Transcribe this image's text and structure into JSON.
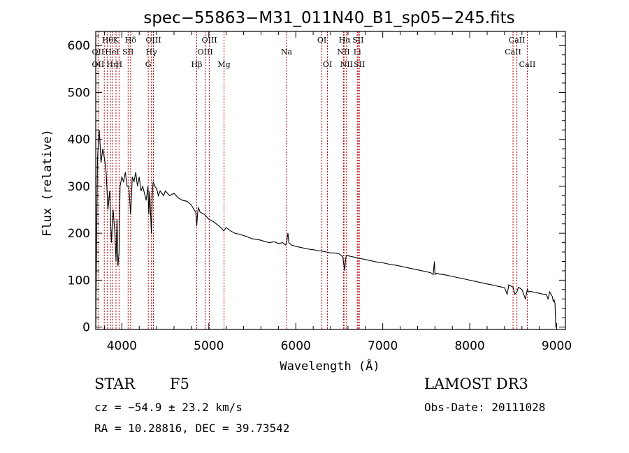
{
  "chart_data": {
    "type": "line",
    "title": "spec−55863−M31_011N40_B1_sp05−245.fits",
    "xlabel": "Wavelength (Å)",
    "ylabel": "Flux (relative)",
    "xlim": [
      3700,
      9100
    ],
    "ylim": [
      -5,
      630
    ],
    "xticks": [
      4000,
      5000,
      6000,
      7000,
      8000,
      9000
    ],
    "yticks": [
      0,
      100,
      200,
      300,
      400,
      500,
      600
    ],
    "grid": false,
    "series": [
      {
        "name": "Flux",
        "color": "#000000",
        "x": [
          3700,
          3720,
          3740,
          3750,
          3760,
          3780,
          3800,
          3820,
          3840,
          3860,
          3880,
          3900,
          3920,
          3933,
          3945,
          3955,
          3968,
          3980,
          4000,
          4020,
          4040,
          4060,
          4080,
          4101,
          4120,
          4140,
          4160,
          4180,
          4200,
          4220,
          4240,
          4260,
          4280,
          4300,
          4310,
          4320,
          4340,
          4350,
          4360,
          4380,
          4400,
          4420,
          4440,
          4460,
          4480,
          4500,
          4550,
          4600,
          4650,
          4700,
          4750,
          4800,
          4830,
          4850,
          4861,
          4870,
          4880,
          4900,
          4950,
          5000,
          5050,
          5100,
          5150,
          5170,
          5200,
          5250,
          5300,
          5350,
          5400,
          5450,
          5500,
          5550,
          5600,
          5650,
          5700,
          5750,
          5800,
          5850,
          5880,
          5895,
          5905,
          5910,
          5920,
          5950,
          6000,
          6050,
          6100,
          6150,
          6200,
          6250,
          6300,
          6350,
          6400,
          6450,
          6500,
          6540,
          6563,
          6570,
          6580,
          6600,
          6650,
          6700,
          6750,
          6800,
          6850,
          6900,
          6950,
          7000,
          7050,
          7100,
          7150,
          7200,
          7250,
          7300,
          7350,
          7400,
          7450,
          7500,
          7550,
          7580,
          7594,
          7600,
          7620,
          7650,
          7700,
          7750,
          7800,
          7850,
          7900,
          7950,
          8000,
          8050,
          8100,
          8150,
          8200,
          8250,
          8300,
          8350,
          8400,
          8430,
          8450,
          8498,
          8520,
          8542,
          8560,
          8600,
          8640,
          8662,
          8680,
          8700,
          8750,
          8800,
          8850,
          8880,
          8900,
          8920,
          8950,
          8960,
          8970,
          8980,
          8990,
          9000
        ],
        "values": [
          0,
          360,
          420,
          390,
          350,
          380,
          360,
          330,
          250,
          290,
          180,
          250,
          200,
          140,
          230,
          130,
          160,
          300,
          320,
          310,
          330,
          300,
          300,
          240,
          320,
          310,
          330,
          300,
          320,
          290,
          300,
          285,
          270,
          300,
          240,
          290,
          200,
          280,
          310,
          300,
          295,
          280,
          290,
          285,
          280,
          290,
          280,
          285,
          275,
          270,
          268,
          260,
          250,
          245,
          215,
          240,
          255,
          245,
          240,
          230,
          225,
          218,
          210,
          205,
          212,
          205,
          200,
          198,
          195,
          192,
          188,
          187,
          185,
          182,
          180,
          182,
          178,
          180,
          175,
          180,
          195,
          200,
          180,
          175,
          172,
          170,
          168,
          166,
          165,
          163,
          162,
          160,
          158,
          158,
          156,
          150,
          120,
          140,
          152,
          152,
          150,
          148,
          146,
          144,
          142,
          140,
          138,
          137,
          135,
          133,
          132,
          130,
          128,
          126,
          124,
          122,
          120,
          118,
          116,
          112,
          140,
          112,
          115,
          113,
          112,
          110,
          108,
          106,
          104,
          102,
          100,
          98,
          96,
          94,
          92,
          90,
          88,
          86,
          84,
          70,
          90,
          85,
          70,
          75,
          85,
          80,
          60,
          80,
          75,
          76,
          74,
          72,
          70,
          70,
          60,
          75,
          65,
          55,
          58,
          50,
          0,
          0
        ]
      }
    ],
    "lines": [
      {
        "wavelength": 3727,
        "labels": [
          "",
          "OII",
          "OII"
        ]
      },
      {
        "wavelength": 3798,
        "labels": [
          "",
          "",
          ""
        ]
      },
      {
        "wavelength": 3835,
        "labels": [
          "Hθ",
          "",
          ""
        ]
      },
      {
        "wavelength": 3869,
        "labels": [
          "",
          "",
          ""
        ]
      },
      {
        "wavelength": 3889,
        "labels": [
          "",
          "HeI",
          "Hη"
        ]
      },
      {
        "wavelength": 3933,
        "labels": [
          "K",
          "",
          ""
        ]
      },
      {
        "wavelength": 3968,
        "labels": [
          "",
          "",
          "H"
        ]
      },
      {
        "wavelength": 4072,
        "labels": [
          "",
          "SII",
          ""
        ]
      },
      {
        "wavelength": 4101,
        "labels": [
          "Hδ",
          "",
          ""
        ]
      },
      {
        "wavelength": 4304,
        "labels": [
          "",
          "",
          "G"
        ]
      },
      {
        "wavelength": 4340,
        "labels": [
          "",
          "Hγ",
          ""
        ]
      },
      {
        "wavelength": 4363,
        "labels": [
          "OIII",
          "",
          ""
        ]
      },
      {
        "wavelength": 4861,
        "labels": [
          "",
          "",
          "Hβ"
        ]
      },
      {
        "wavelength": 4959,
        "labels": [
          "",
          "OIII",
          ""
        ]
      },
      {
        "wavelength": 5007,
        "labels": [
          "OIII",
          "",
          ""
        ]
      },
      {
        "wavelength": 5175,
        "labels": [
          "",
          "",
          "Mg"
        ]
      },
      {
        "wavelength": 5893,
        "labels": [
          "",
          "Na",
          ""
        ]
      },
      {
        "wavelength": 6300,
        "labels": [
          "OI",
          "",
          ""
        ]
      },
      {
        "wavelength": 6364,
        "labels": [
          "",
          "",
          "OI"
        ]
      },
      {
        "wavelength": 6548,
        "labels": [
          "",
          "NII",
          ""
        ]
      },
      {
        "wavelength": 6563,
        "labels": [
          "Hα",
          "",
          ""
        ]
      },
      {
        "wavelength": 6583,
        "labels": [
          "",
          "",
          "NII"
        ]
      },
      {
        "wavelength": 6707,
        "labels": [
          "",
          "Li",
          ""
        ]
      },
      {
        "wavelength": 6716,
        "labels": [
          "SII",
          "",
          ""
        ]
      },
      {
        "wavelength": 6731,
        "labels": [
          "",
          "",
          "SII"
        ]
      },
      {
        "wavelength": 8498,
        "labels": [
          "",
          "CaII",
          ""
        ]
      },
      {
        "wavelength": 8542,
        "labels": [
          "CaII",
          "",
          ""
        ]
      },
      {
        "wavelength": 8662,
        "labels": [
          "",
          "",
          "CaII"
        ]
      }
    ]
  },
  "info": {
    "object_class": "STAR",
    "subclass": "F5",
    "survey": "LAMOST DR3",
    "cz": "cz = −54.9 ± 23.2 km/s",
    "obs_date": "Obs-Date: 20111028",
    "coords": "RA =  10.28816, DEC =  39.73542"
  }
}
